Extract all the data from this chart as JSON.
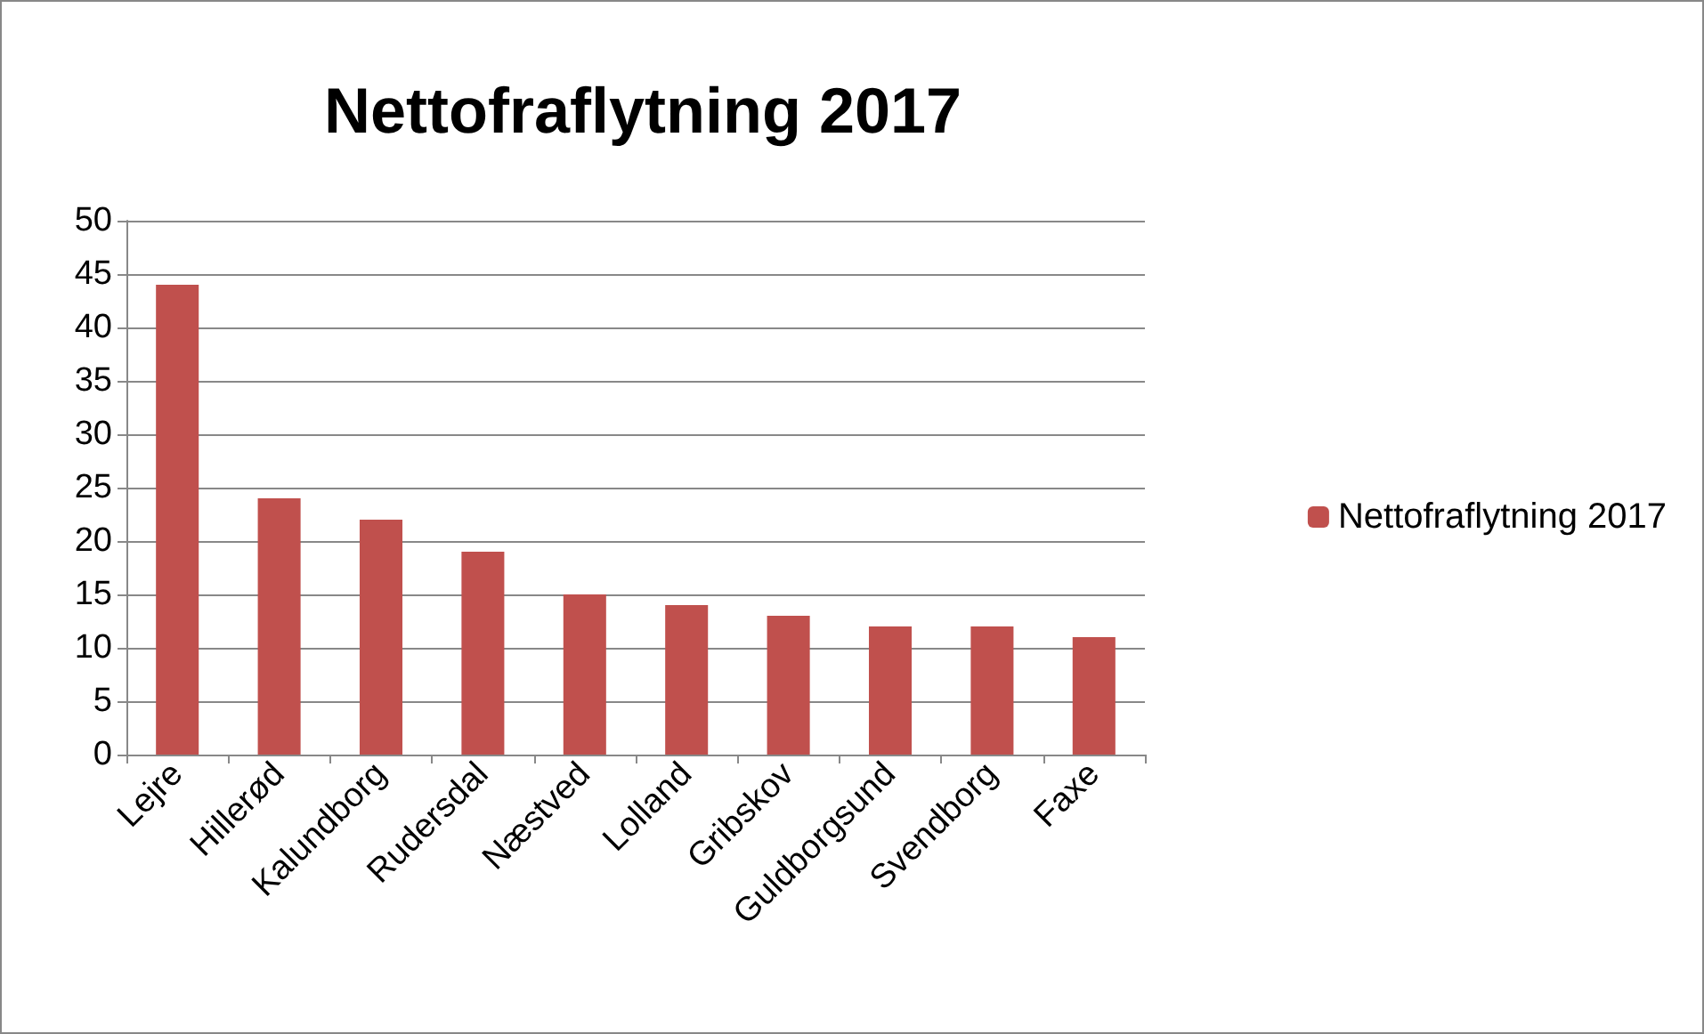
{
  "chart_data": {
    "type": "bar",
    "title": "Nettofraflytning 2017",
    "categories": [
      "Lejre",
      "Hillerød",
      "Kalundborg",
      "Rudersdal",
      "Næstved",
      "Lolland",
      "Gribskov",
      "Guldborgsund",
      "Svendborg",
      "Faxe"
    ],
    "series": [
      {
        "name": "Nettofraflytning 2017",
        "color": "#c0504d",
        "values": [
          44,
          24,
          22,
          19,
          15,
          14,
          13,
          12,
          12,
          11
        ]
      }
    ],
    "ylim": [
      0,
      50
    ],
    "yticks": [
      0,
      5,
      10,
      15,
      20,
      25,
      30,
      35,
      40,
      45,
      50
    ],
    "grid": "y",
    "legend": "right"
  }
}
